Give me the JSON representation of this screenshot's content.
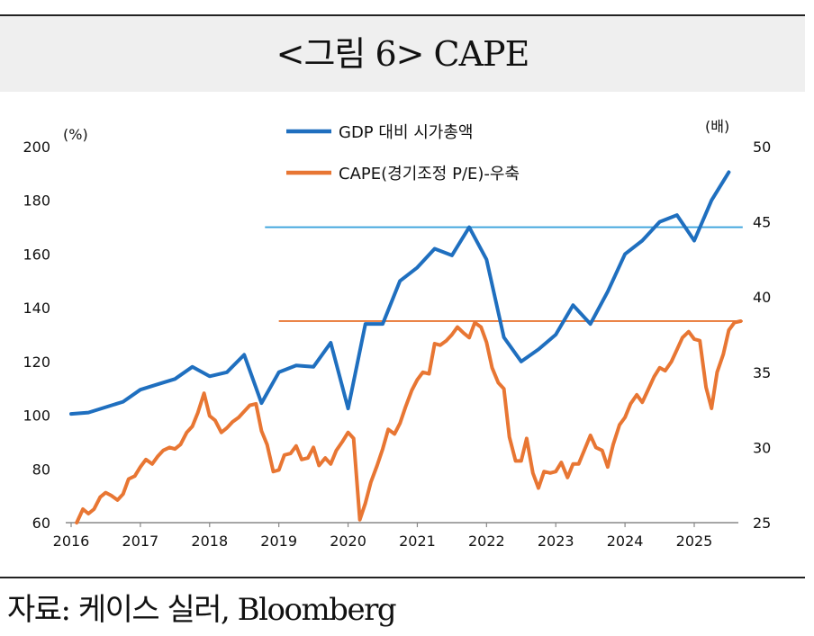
{
  "title": "<그림 6> CAPE",
  "source": "자료: 케이스 실러, Bloomberg",
  "chart_data": {
    "type": "line",
    "left_unit": "(%)",
    "right_unit": "(배)",
    "x_ticks": [
      "2016",
      "2017",
      "2018",
      "2019",
      "2020",
      "2021",
      "2022",
      "2023",
      "2024",
      "2025"
    ],
    "left_axis": {
      "ylim": [
        60,
        200
      ],
      "ticks": [
        60,
        80,
        100,
        120,
        140,
        160,
        180,
        200
      ]
    },
    "right_axis": {
      "ylim": [
        25,
        50
      ],
      "ticks": [
        25,
        30,
        35,
        40,
        45,
        50
      ]
    },
    "legend_placement": "top-center",
    "series": [
      {
        "name": "GDP 대비 시가총액",
        "axis": "left",
        "color": "#1f6fbf",
        "points": [
          [
            2016.0,
            100.5
          ],
          [
            2016.25,
            101
          ],
          [
            2016.5,
            103
          ],
          [
            2016.75,
            105
          ],
          [
            2017.0,
            109.5
          ],
          [
            2017.25,
            111.5
          ],
          [
            2017.5,
            113.5
          ],
          [
            2017.75,
            118
          ],
          [
            2018.0,
            114.5
          ],
          [
            2018.25,
            116
          ],
          [
            2018.5,
            122.5
          ],
          [
            2018.75,
            104.5
          ],
          [
            2019.0,
            116
          ],
          [
            2019.25,
            118.5
          ],
          [
            2019.5,
            118
          ],
          [
            2019.75,
            127
          ],
          [
            2020.0,
            102.5
          ],
          [
            2020.25,
            134
          ],
          [
            2020.5,
            134
          ],
          [
            2020.75,
            150
          ],
          [
            2021.0,
            155
          ],
          [
            2021.25,
            162
          ],
          [
            2021.5,
            159.5
          ],
          [
            2021.75,
            170
          ],
          [
            2022.0,
            158
          ],
          [
            2022.25,
            129
          ],
          [
            2022.5,
            120
          ],
          [
            2022.75,
            124.5
          ],
          [
            2023.0,
            130
          ],
          [
            2023.25,
            141
          ],
          [
            2023.5,
            134
          ],
          [
            2023.75,
            146
          ],
          [
            2024.0,
            160
          ],
          [
            2024.25,
            165
          ],
          [
            2024.5,
            172
          ],
          [
            2024.75,
            174.5
          ],
          [
            2025.0,
            165
          ],
          [
            2025.25,
            180
          ],
          [
            2025.5,
            190.5
          ]
        ]
      },
      {
        "name": "CAPE(경기조정 P/E)-우축",
        "axis": "right",
        "color": "#e87633",
        "points": [
          [
            2016.08,
            25.0
          ],
          [
            2016.17,
            25.9
          ],
          [
            2016.25,
            25.6
          ],
          [
            2016.33,
            25.9
          ],
          [
            2016.42,
            26.7
          ],
          [
            2016.5,
            27.0
          ],
          [
            2016.58,
            26.8
          ],
          [
            2016.67,
            26.5
          ],
          [
            2016.75,
            26.9
          ],
          [
            2016.83,
            27.9
          ],
          [
            2016.92,
            28.1
          ],
          [
            2017.0,
            28.7
          ],
          [
            2017.08,
            29.2
          ],
          [
            2017.17,
            28.9
          ],
          [
            2017.25,
            29.4
          ],
          [
            2017.33,
            29.8
          ],
          [
            2017.42,
            30.0
          ],
          [
            2017.5,
            29.9
          ],
          [
            2017.58,
            30.2
          ],
          [
            2017.67,
            31.0
          ],
          [
            2017.75,
            31.4
          ],
          [
            2017.83,
            32.3
          ],
          [
            2017.92,
            33.6
          ],
          [
            2018.0,
            32.1
          ],
          [
            2018.08,
            31.8
          ],
          [
            2018.17,
            31.0
          ],
          [
            2018.25,
            31.3
          ],
          [
            2018.33,
            31.7
          ],
          [
            2018.42,
            32.0
          ],
          [
            2018.5,
            32.4
          ],
          [
            2018.58,
            32.8
          ],
          [
            2018.67,
            32.9
          ],
          [
            2018.75,
            31.1
          ],
          [
            2018.83,
            30.2
          ],
          [
            2018.92,
            28.4
          ],
          [
            2019.0,
            28.5
          ],
          [
            2019.08,
            29.5
          ],
          [
            2019.17,
            29.6
          ],
          [
            2019.25,
            30.1
          ],
          [
            2019.33,
            29.2
          ],
          [
            2019.42,
            29.3
          ],
          [
            2019.5,
            30.0
          ],
          [
            2019.58,
            28.8
          ],
          [
            2019.67,
            29.3
          ],
          [
            2019.75,
            28.9
          ],
          [
            2019.83,
            29.8
          ],
          [
            2019.92,
            30.4
          ],
          [
            2020.0,
            31.0
          ],
          [
            2020.08,
            30.6
          ],
          [
            2020.17,
            25.2
          ],
          [
            2020.25,
            26.3
          ],
          [
            2020.33,
            27.7
          ],
          [
            2020.42,
            28.8
          ],
          [
            2020.5,
            29.9
          ],
          [
            2020.58,
            31.2
          ],
          [
            2020.67,
            30.9
          ],
          [
            2020.75,
            31.6
          ],
          [
            2020.83,
            32.7
          ],
          [
            2020.92,
            33.8
          ],
          [
            2021.0,
            34.5
          ],
          [
            2021.08,
            35.0
          ],
          [
            2021.17,
            34.9
          ],
          [
            2021.25,
            36.9
          ],
          [
            2021.33,
            36.8
          ],
          [
            2021.42,
            37.1
          ],
          [
            2021.5,
            37.5
          ],
          [
            2021.58,
            38.0
          ],
          [
            2021.67,
            37.6
          ],
          [
            2021.75,
            37.3
          ],
          [
            2021.83,
            38.3
          ],
          [
            2021.92,
            38.0
          ],
          [
            2022.0,
            37.0
          ],
          [
            2022.08,
            35.3
          ],
          [
            2022.17,
            34.3
          ],
          [
            2022.25,
            33.9
          ],
          [
            2022.33,
            30.7
          ],
          [
            2022.42,
            29.1
          ],
          [
            2022.5,
            29.1
          ],
          [
            2022.58,
            30.6
          ],
          [
            2022.67,
            28.3
          ],
          [
            2022.75,
            27.3
          ],
          [
            2022.83,
            28.4
          ],
          [
            2022.92,
            28.3
          ],
          [
            2023.0,
            28.4
          ],
          [
            2023.08,
            29.0
          ],
          [
            2023.17,
            28.0
          ],
          [
            2023.25,
            28.9
          ],
          [
            2023.33,
            28.9
          ],
          [
            2023.42,
            29.9
          ],
          [
            2023.5,
            30.8
          ],
          [
            2023.58,
            30.0
          ],
          [
            2023.67,
            29.8
          ],
          [
            2023.75,
            28.7
          ],
          [
            2023.83,
            30.2
          ],
          [
            2023.92,
            31.5
          ],
          [
            2024.0,
            32.0
          ],
          [
            2024.08,
            32.9
          ],
          [
            2024.17,
            33.5
          ],
          [
            2024.25,
            33.0
          ],
          [
            2024.33,
            33.8
          ],
          [
            2024.42,
            34.7
          ],
          [
            2024.5,
            35.3
          ],
          [
            2024.58,
            35.1
          ],
          [
            2024.67,
            35.7
          ],
          [
            2024.75,
            36.5
          ],
          [
            2024.83,
            37.3
          ],
          [
            2024.92,
            37.7
          ],
          [
            2025.0,
            37.2
          ],
          [
            2025.08,
            37.1
          ],
          [
            2025.17,
            34.0
          ],
          [
            2025.25,
            32.6
          ],
          [
            2025.33,
            35.0
          ],
          [
            2025.42,
            36.2
          ],
          [
            2025.5,
            37.8
          ],
          [
            2025.58,
            38.3
          ],
          [
            2025.67,
            38.4
          ]
        ]
      }
    ],
    "reference_lines": [
      {
        "axis": "left",
        "value": 170,
        "x_start": 2018.8,
        "x_end": 2025.7,
        "color": "#3aa3dc"
      },
      {
        "axis": "right",
        "value": 38.4,
        "x_start": 2019.0,
        "x_end": 2025.7,
        "color": "#e87633"
      }
    ],
    "grid": false
  }
}
